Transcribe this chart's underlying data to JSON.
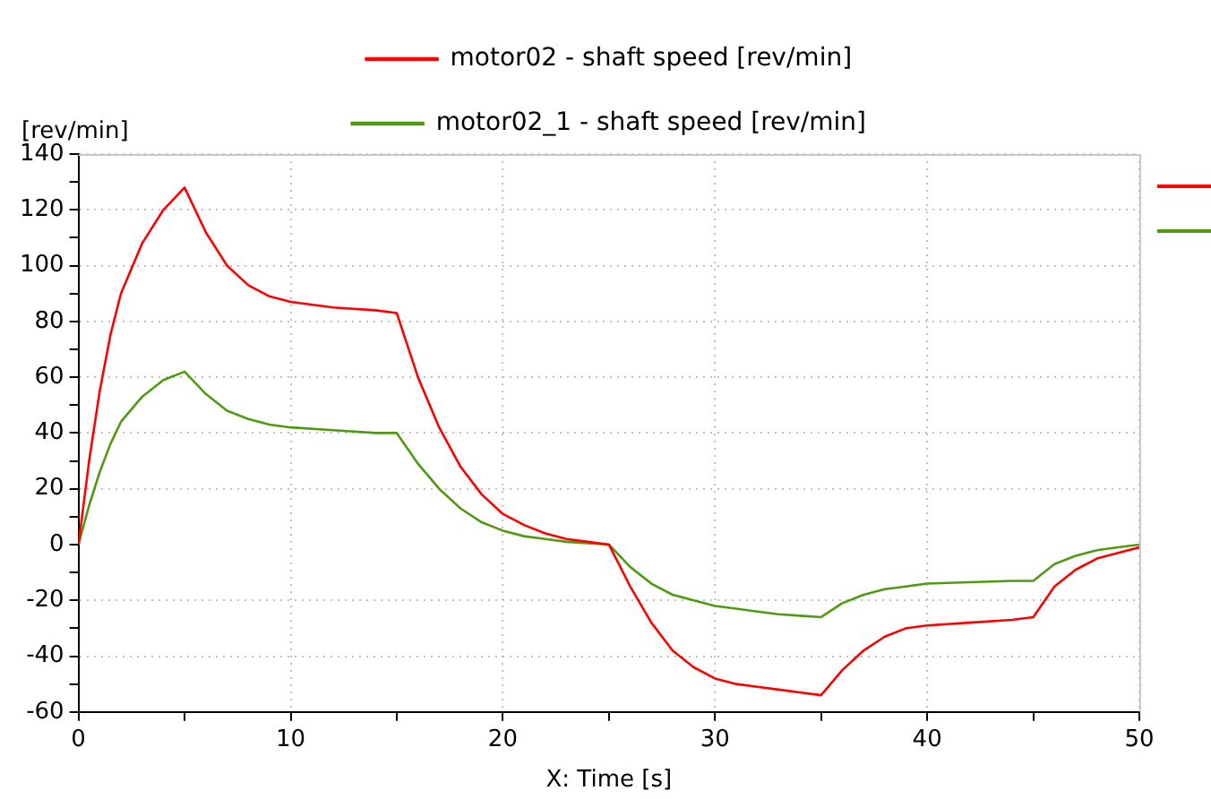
{
  "chart_data": {
    "type": "line",
    "xlabel": "X: Time [s]",
    "ylabel": "[rev/min]",
    "xlim": [
      0,
      50
    ],
    "xticks": [
      0,
      {
        "value": 5,
        "label": null
      },
      10,
      {
        "value": 15,
        "label": null
      },
      20,
      {
        "value": 25,
        "label": null
      },
      30,
      {
        "value": 35,
        "label": null
      },
      40,
      {
        "value": 45,
        "label": null
      },
      50
    ],
    "ylim": [
      -60,
      140
    ],
    "yticks": [
      -60,
      {
        "value": -50,
        "label": null
      },
      -40,
      {
        "value": -30,
        "label": null
      },
      -20,
      {
        "value": -10,
        "label": null
      },
      0,
      {
        "value": 10,
        "label": null
      },
      20,
      {
        "value": 30,
        "label": null
      },
      40,
      {
        "value": 50,
        "label": null
      },
      60,
      {
        "value": 70,
        "label": null
      },
      80,
      {
        "value": 90,
        "label": null
      },
      100,
      {
        "value": 110,
        "label": null
      },
      120,
      {
        "value": 130,
        "label": null
      },
      140
    ],
    "grid": true,
    "legend": "top",
    "line_style": "solid",
    "marker": "none",
    "series": [
      {
        "name": "motor02 - shaft speed [rev/min]",
        "color": "#ff0000",
        "x": [
          0,
          0.5,
          1,
          1.5,
          2,
          3,
          4,
          5,
          6,
          7,
          8,
          9,
          10,
          12,
          14,
          15,
          16,
          17,
          18,
          19,
          20,
          21,
          22,
          23,
          24,
          25,
          26,
          27,
          28,
          29,
          30,
          31,
          32,
          33,
          34,
          35,
          36,
          37,
          38,
          39,
          40,
          42,
          44,
          45,
          46,
          47,
          48,
          49,
          50
        ],
        "values": [
          0,
          30,
          55,
          75,
          90,
          108,
          120,
          128,
          112,
          100,
          93,
          89,
          87,
          85,
          84,
          83,
          60,
          42,
          28,
          18,
          11,
          7,
          4,
          2,
          1,
          0,
          -15,
          -28,
          -38,
          -44,
          -48,
          -50,
          -51,
          -52,
          -53,
          -54,
          -45,
          -38,
          -33,
          -30,
          -29,
          -28,
          -27,
          -26,
          -15,
          -9,
          -5,
          -3,
          -1
        ]
      },
      {
        "name": "motor02_1 - shaft speed [rev/min]",
        "color": "#4f9a12",
        "x": [
          0,
          0.5,
          1,
          1.5,
          2,
          3,
          4,
          5,
          6,
          7,
          8,
          9,
          10,
          12,
          14,
          15,
          16,
          17,
          18,
          19,
          20,
          21,
          22,
          23,
          24,
          25,
          26,
          27,
          28,
          29,
          30,
          31,
          32,
          33,
          34,
          35,
          36,
          37,
          38,
          39,
          40,
          42,
          44,
          45,
          46,
          47,
          48,
          49,
          50
        ],
        "values": [
          0,
          14,
          26,
          36,
          44,
          53,
          59,
          62,
          54,
          48,
          45,
          43,
          42,
          41,
          40,
          40,
          29,
          20,
          13,
          8,
          5,
          3,
          2,
          1,
          0.5,
          0,
          -8,
          -14,
          -18,
          -20,
          -22,
          -23,
          -24,
          -25,
          -25.5,
          -26,
          -21,
          -18,
          -16,
          -15,
          -14,
          -13.5,
          -13,
          -13,
          -7,
          -4,
          -2,
          -1,
          0
        ]
      }
    ]
  }
}
